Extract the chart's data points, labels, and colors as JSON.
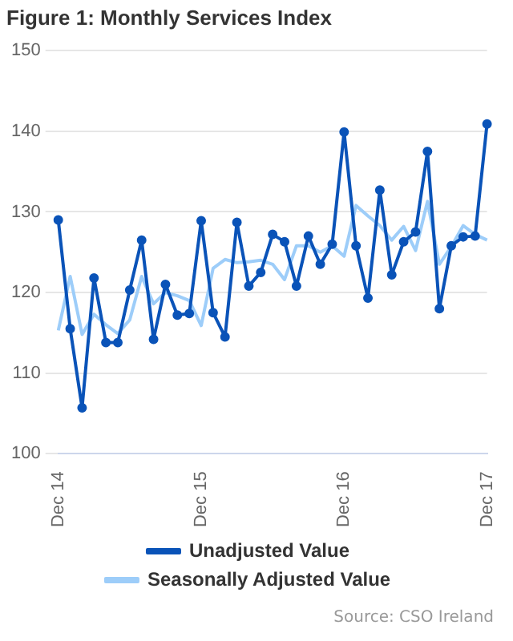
{
  "chart_data": {
    "type": "line",
    "title": "Figure 1: Monthly Services Index",
    "categories": [
      "Dec 14",
      null,
      null,
      null,
      null,
      null,
      null,
      null,
      null,
      null,
      null,
      null,
      "Dec 15",
      null,
      null,
      null,
      null,
      null,
      null,
      null,
      null,
      null,
      null,
      null,
      "Dec 16",
      null,
      null,
      null,
      null,
      null,
      null,
      null,
      null,
      null,
      null,
      null,
      "Dec 17"
    ],
    "series": [
      {
        "name": "Unadjusted Value",
        "color": "#0a53b8",
        "marker": "circle",
        "values": [
          129,
          115.5,
          105.7,
          121.8,
          113.8,
          113.8,
          120.3,
          126.5,
          114.2,
          121,
          117.2,
          117.4,
          128.9,
          117.5,
          114.5,
          128.7,
          120.8,
          122.5,
          127.2,
          126.3,
          120.8,
          127,
          123.5,
          126,
          139.9,
          125.8,
          119.3,
          132.7,
          122.2,
          126.3,
          127.5,
          137.5,
          118,
          125.8,
          126.9,
          127,
          140.9
        ]
      },
      {
        "name": "Seasonally Adjusted Value",
        "color": "#9dcdf9",
        "marker": "none",
        "values": [
          115.3,
          122,
          114.8,
          117.3,
          116,
          114.9,
          116.6,
          122,
          118.6,
          120,
          119.6,
          119,
          115.9,
          123,
          124.1,
          123.7,
          123.8,
          124,
          123.5,
          121.6,
          125.8,
          125.8,
          125,
          125.8,
          124.5,
          130.8,
          129.5,
          128.3,
          126.5,
          128.2,
          125.2,
          131.3,
          123.5,
          125.7,
          128.3,
          127.2,
          126.5
        ]
      }
    ],
    "ylim": [
      100,
      150
    ],
    "yticks": [
      100,
      110,
      120,
      130,
      140,
      150
    ],
    "grid": "y",
    "legend": "bottom",
    "annotations": [
      "Source: CSO Ireland"
    ]
  }
}
